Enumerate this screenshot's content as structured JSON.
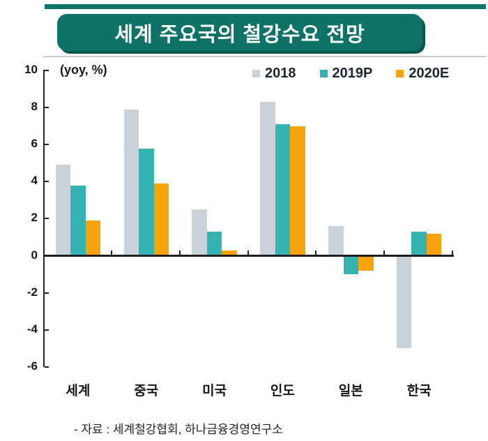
{
  "title": "세계 주요국의 철강수요 전망",
  "y_axis_unit_label": "(yoy, %)",
  "source": "- 자료 :  세계철강협회, 하나금융경영연구소",
  "colors": {
    "title_bg": "#0f7267",
    "title_shadow": "#0a584e",
    "accent_bar": "#0e7268",
    "axis": "#1f1f1f",
    "series_2018": "#c9d2d9",
    "series_2019p": "#35b3b2",
    "series_2020e": "#f7a30e"
  },
  "chart_data": {
    "type": "bar",
    "title": "세계 주요국의 철강수요 전망",
    "categories": [
      "세계",
      "중국",
      "미국",
      "인도",
      "일본",
      "한국"
    ],
    "series": [
      {
        "name": "2018",
        "color": "#c9d2d9",
        "values": [
          4.9,
          7.9,
          2.5,
          8.3,
          1.6,
          -5.0
        ]
      },
      {
        "name": "2019P",
        "color": "#35b3b2",
        "values": [
          3.8,
          5.8,
          1.3,
          7.1,
          -1.0,
          1.3
        ]
      },
      {
        "name": "2020E",
        "color": "#f7a30e",
        "values": [
          1.9,
          3.9,
          0.3,
          7.0,
          -0.8,
          1.2
        ]
      }
    ],
    "xlabel": "",
    "ylabel": "(yoy, %)",
    "ylim": [
      -6,
      10
    ],
    "ytick_step": 2,
    "grid": false,
    "legend_position": "top-right",
    "source": "- 자료 :  세계철강협회, 하나금융경영연구소"
  }
}
